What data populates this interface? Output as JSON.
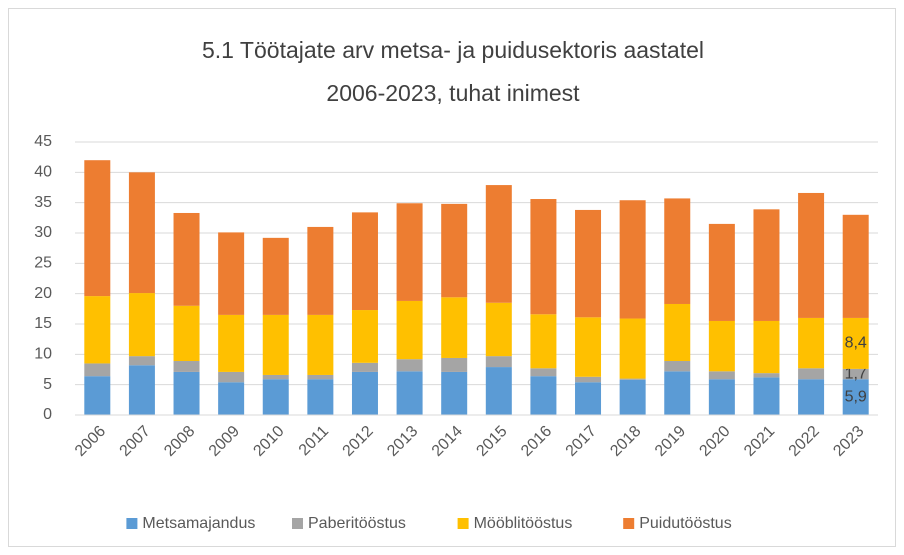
{
  "chart_data": {
    "type": "stacked_bar",
    "title": [
      "5.1 Töötajate arv metsa- ja puidusektoris aastatel",
      "2006-2023, tuhat inimest"
    ],
    "categories": [
      "2006",
      "2007",
      "2008",
      "2009",
      "2010",
      "2011",
      "2012",
      "2013",
      "2014",
      "2015",
      "2016",
      "2017",
      "2018",
      "2019",
      "2020",
      "2021",
      "2022",
      "2023"
    ],
    "series": [
      {
        "name": "Metsamajandus",
        "color": "#5b9bd5",
        "values": [
          6.4,
          8.2,
          7.1,
          5.4,
          5.9,
          5.9,
          7.1,
          7.2,
          7.1,
          7.9,
          6.4,
          5.4,
          5.8,
          7.2,
          5.9,
          6.2,
          5.9,
          5.9
        ],
        "value_labels": [
          null,
          null,
          null,
          null,
          null,
          null,
          null,
          null,
          null,
          null,
          null,
          null,
          null,
          null,
          null,
          null,
          null,
          "5,9"
        ]
      },
      {
        "name": "Paberitööstus",
        "color": "#a5a5a5",
        "values": [
          2.1,
          1.5,
          1.8,
          1.7,
          0.7,
          0.7,
          1.5,
          2.0,
          2.3,
          1.8,
          1.3,
          0.9,
          0.2,
          1.7,
          1.3,
          0.7,
          1.8,
          1.7
        ],
        "value_labels": [
          null,
          null,
          null,
          null,
          null,
          null,
          null,
          null,
          null,
          null,
          null,
          null,
          null,
          null,
          null,
          null,
          null,
          "1,7"
        ]
      },
      {
        "name": "Mööblitööstus",
        "color": "#ffc000",
        "values": [
          11.1,
          10.4,
          9.1,
          9.4,
          9.9,
          9.9,
          8.7,
          9.6,
          10.0,
          8.8,
          8.9,
          9.8,
          9.9,
          9.4,
          8.3,
          8.6,
          8.3,
          8.4
        ],
        "value_labels": [
          null,
          null,
          null,
          null,
          null,
          null,
          null,
          null,
          null,
          null,
          null,
          null,
          null,
          null,
          null,
          null,
          null,
          "8,4"
        ]
      },
      {
        "name": "Puidutööstus",
        "color": "#ed7d31",
        "values": [
          22.4,
          19.9,
          15.3,
          13.6,
          12.7,
          14.5,
          16.1,
          16.1,
          15.4,
          19.4,
          19.0,
          17.7,
          19.5,
          17.4,
          16.0,
          18.4,
          20.6,
          17
        ]
      }
    ],
    "ylim": [
      0,
      45
    ],
    "yticks": [
      0,
      5,
      10,
      15,
      20,
      25,
      30,
      35,
      40,
      45
    ],
    "grid": true,
    "legend": "bottom"
  }
}
